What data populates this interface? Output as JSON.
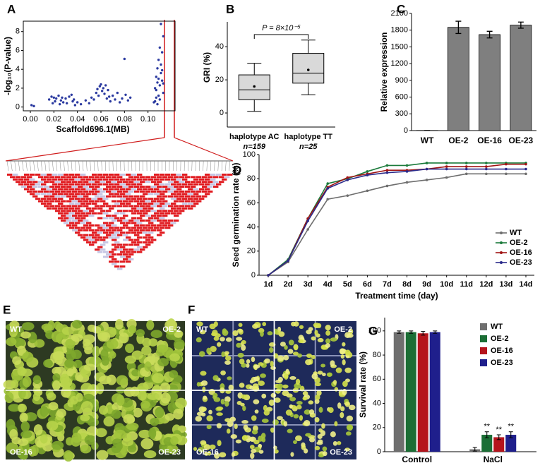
{
  "chart_data": [
    {
      "type": "scatter",
      "panel": "A",
      "xlabel": "Scaffold696.1(MB)",
      "ylabel": "-log₁₀(P-value)",
      "color": "#2b3aa0",
      "xlim": [
        -0.006,
        0.123
      ],
      "ylim": [
        -0.4,
        9.1
      ],
      "xticks": [
        {
          "value": 0,
          "label": "0.00"
        },
        {
          "value": 0.02,
          "label": "0.02"
        },
        {
          "value": 0.04,
          "label": "0.04"
        },
        {
          "value": 0.06,
          "label": "0.06"
        },
        {
          "value": 0.08,
          "label": "0.08"
        },
        {
          "value": 0.1,
          "label": "0.10"
        }
      ],
      "yticks": [
        0,
        2,
        4,
        6,
        8
      ],
      "x": [
        0.001,
        0.003,
        0.016,
        0.018,
        0.019,
        0.02,
        0.021,
        0.022,
        0.024,
        0.025,
        0.026,
        0.027,
        0.028,
        0.03,
        0.031,
        0.033,
        0.035,
        0.036,
        0.037,
        0.038,
        0.04,
        0.043,
        0.047,
        0.05,
        0.052,
        0.054,
        0.056,
        0.057,
        0.058,
        0.059,
        0.06,
        0.061,
        0.062,
        0.063,
        0.064,
        0.065,
        0.066,
        0.067,
        0.068,
        0.07,
        0.072,
        0.074,
        0.076,
        0.078,
        0.08,
        0.081,
        0.083,
        0.085,
        0.105,
        0.106,
        0.107,
        0.107,
        0.108,
        0.108,
        0.109,
        0.109,
        0.11,
        0.11,
        0.111,
        0.111,
        0.112,
        0.112,
        0.113,
        0.113,
        0.108,
        0.109,
        0.11,
        0.111,
        0.112,
        0.106,
        0.107,
        0.113
      ],
      "y": [
        0.2,
        0.1,
        0.8,
        1.1,
        0.4,
        1.0,
        0.6,
        0.9,
        1.2,
        0.3,
        0.7,
        1.0,
        0.5,
        0.9,
        0.4,
        1.1,
        1.3,
        0.6,
        0.8,
        0.2,
        0.5,
        0.3,
        0.7,
        0.4,
        1.0,
        0.8,
        1.5,
        1.9,
        1.2,
        2.2,
        2.4,
        1.7,
        2.0,
        1.4,
        2.3,
        0.9,
        1.8,
        1.1,
        0.6,
        1.2,
        0.8,
        1.5,
        0.5,
        0.9,
        5.1,
        1.3,
        0.7,
        1.0,
        0.5,
        2.0,
        3.2,
        1.0,
        2.6,
        4.1,
        3.0,
        5.0,
        2.3,
        6.3,
        3.6,
        8.8,
        2.8,
        5.8,
        1.5,
        7.5,
        0.3,
        1.2,
        0.8,
        4.5,
        3.9,
        0.6,
        1.8,
        2.5
      ]
    },
    {
      "type": "box",
      "panel": "B",
      "ylabel": "GRI (%)",
      "annotation": "P = 8×10⁻⁵",
      "categories": [
        "haplotype AC",
        "haplotype TT"
      ],
      "n_labels": [
        "n=159",
        "n=25"
      ],
      "boxes": [
        {
          "min": 1,
          "q1": 8,
          "median": 14,
          "q3": 23,
          "max": 30,
          "mean": 16
        },
        {
          "min": 11,
          "q1": 18,
          "median": 24,
          "q3": 36,
          "max": 44,
          "mean": 26
        }
      ],
      "color": "#d9d9d9",
      "ylim": [
        -8.5,
        55
      ],
      "yticks": [
        0,
        20,
        40
      ]
    },
    {
      "type": "bar",
      "panel": "C",
      "ylabel": "Relative expression",
      "color": "#7f7f7f",
      "categories": [
        "WT",
        "OE-2",
        "OE-16",
        "OE-23"
      ],
      "values": [
        3,
        1850,
        1720,
        1890
      ],
      "errors": [
        0,
        110,
        60,
        55
      ],
      "ylim": [
        0,
        2100
      ],
      "yticks": [
        0,
        300,
        600,
        900,
        1200,
        1500,
        1800,
        2100
      ]
    },
    {
      "type": "line",
      "panel": "D",
      "xlabel": "Treatment time (day)",
      "ylabel": "Seed germination rate (%)",
      "legend": "lower right",
      "categories": [
        "1d",
        "2d",
        "3d",
        "4d",
        "5d",
        "6d",
        "7d",
        "8d",
        "9d",
        "10d",
        "11d",
        "12d",
        "13d",
        "14d"
      ],
      "series": [
        {
          "name": "WT",
          "color": "#6e6e6e",
          "values": [
            0,
            11,
            38,
            63,
            66,
            70,
            74,
            77,
            79,
            81,
            84,
            84,
            84,
            84
          ]
        },
        {
          "name": "OE-2",
          "color": "#1a7a3a",
          "values": [
            0,
            13,
            47,
            76,
            80,
            86,
            91,
            91,
            93,
            93,
            93,
            93,
            93,
            93
          ]
        },
        {
          "name": "OE-16",
          "color": "#a01414",
          "values": [
            0,
            12,
            47,
            73,
            81,
            84,
            87,
            87,
            88,
            90,
            90,
            90,
            92,
            92
          ]
        },
        {
          "name": "OE-23",
          "color": "#2a2a8a",
          "values": [
            0,
            12,
            45,
            72,
            79,
            83,
            85,
            86,
            88,
            88,
            88,
            88,
            88,
            88
          ]
        }
      ],
      "ylim": [
        0,
        100
      ],
      "yticks": [
        0,
        20,
        40,
        60,
        80,
        100
      ]
    },
    {
      "type": "grouped_bar",
      "panel": "G",
      "ylabel": "Survival rate (%)",
      "legend": "upper right",
      "categories": [
        "Control",
        "NaCl"
      ],
      "series": [
        {
          "name": "WT",
          "color": "#6f6f6f",
          "values": [
            99,
            2
          ],
          "errors": [
            1,
            1.5
          ],
          "significance": [
            null,
            null
          ]
        },
        {
          "name": "OE-2",
          "color": "#1b6e35",
          "values": [
            99,
            14
          ],
          "errors": [
            1,
            2.5
          ],
          "significance": [
            null,
            "**"
          ]
        },
        {
          "name": "OE-16",
          "color": "#b5141c",
          "values": [
            98,
            12
          ],
          "errors": [
            1.5,
            2
          ],
          "significance": [
            null,
            "**"
          ]
        },
        {
          "name": "OE-23",
          "color": "#1f1f8c",
          "values": [
            99,
            14
          ],
          "errors": [
            1,
            2.5
          ],
          "significance": [
            null,
            "**"
          ]
        }
      ],
      "ylim": [
        0,
        111
      ],
      "yticks": [
        0,
        20,
        40,
        60,
        80,
        100
      ]
    }
  ],
  "photos": [
    {
      "panel": "E",
      "labels": [
        "WT",
        "OE-2",
        "OE-16",
        "OE-23"
      ]
    },
    {
      "panel": "F",
      "labels": [
        "WT",
        "OE-2",
        "OE-16",
        "OE-23"
      ]
    }
  ]
}
